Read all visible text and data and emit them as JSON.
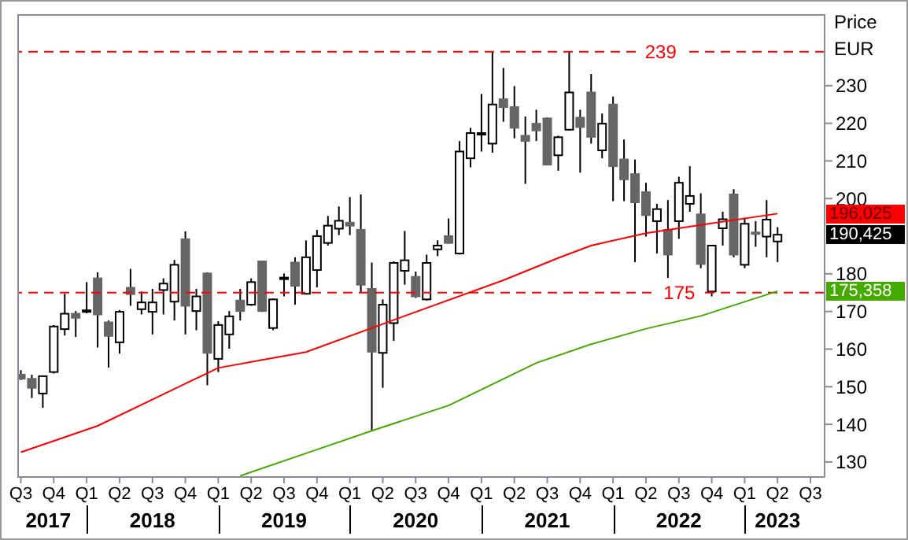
{
  "chart_data": {
    "type": "candlestick",
    "ylabel": "Price\nEUR",
    "x": [
      "2017-07",
      "2017-08",
      "2017-09",
      "2017-10",
      "2017-11",
      "2017-12",
      "2018-01",
      "2018-02",
      "2018-03",
      "2018-04",
      "2018-05",
      "2018-06",
      "2018-07",
      "2018-08",
      "2018-09",
      "2018-10",
      "2018-11",
      "2018-12",
      "2019-01",
      "2019-02",
      "2019-03",
      "2019-04",
      "2019-05",
      "2019-06",
      "2019-07",
      "2019-08",
      "2019-09",
      "2019-10",
      "2019-11",
      "2019-12",
      "2020-01",
      "2020-02",
      "2020-03",
      "2020-04",
      "2020-05",
      "2020-06",
      "2020-07",
      "2020-08",
      "2020-09",
      "2020-10",
      "2020-11",
      "2020-12",
      "2021-01",
      "2021-02",
      "2021-03",
      "2021-04",
      "2021-05",
      "2021-06",
      "2021-07",
      "2021-08",
      "2021-09",
      "2021-10",
      "2021-11",
      "2021-12",
      "2022-01",
      "2022-02",
      "2022-03",
      "2022-04",
      "2022-05",
      "2022-06",
      "2022-07",
      "2022-08",
      "2022-09",
      "2022-10",
      "2022-11",
      "2022-12",
      "2023-01",
      "2023-02",
      "2023-03",
      "2023-04"
    ],
    "ohlc": [
      [
        153.2,
        154.4,
        151.8,
        152.1
      ],
      [
        152.1,
        153.2,
        147.0,
        149.7
      ],
      [
        148.2,
        153.0,
        144.4,
        152.8
      ],
      [
        153.9,
        166.4,
        153.5,
        166.0
      ],
      [
        165.3,
        174.7,
        163.6,
        169.4
      ],
      [
        169.4,
        170.1,
        163.2,
        168.3
      ],
      [
        169.9,
        177.8,
        169.5,
        170.3
      ],
      [
        178.8,
        180.4,
        160.4,
        169.2
      ],
      [
        167.1,
        167.6,
        155.1,
        163.5
      ],
      [
        161.8,
        170.4,
        158.8,
        169.9
      ],
      [
        176.3,
        181.3,
        171.5,
        174.6
      ],
      [
        170.6,
        175.3,
        169.2,
        172.4
      ],
      [
        169.9,
        176.0,
        163.9,
        172.4
      ],
      [
        175.7,
        178.8,
        169.2,
        177.4
      ],
      [
        172.6,
        183.7,
        167.6,
        182.4
      ],
      [
        189.2,
        191.3,
        163.9,
        171.5
      ],
      [
        170.1,
        176.0,
        165.0,
        174.0
      ],
      [
        180.1,
        180.4,
        150.4,
        159.0
      ],
      [
        157.4,
        167.4,
        153.9,
        166.4
      ],
      [
        163.9,
        170.1,
        160.1,
        168.7
      ],
      [
        172.9,
        176.0,
        167.6,
        170.1
      ],
      [
        171.8,
        178.8,
        171.5,
        177.8
      ],
      [
        183.3,
        183.5,
        169.9,
        170.1
      ],
      [
        165.6,
        173.4,
        165.0,
        173.2
      ],
      [
        178.7,
        180.1,
        174.0,
        179.0
      ],
      [
        183.0,
        184.4,
        171.8,
        176.8
      ],
      [
        174.7,
        188.9,
        174.5,
        184.4
      ],
      [
        181.0,
        191.7,
        176.4,
        190.0
      ],
      [
        188.2,
        195.4,
        187.5,
        192.8
      ],
      [
        192.0,
        197.9,
        190.3,
        194.1
      ],
      [
        193.6,
        200.4,
        190.3,
        192.8
      ],
      [
        191.7,
        201.1,
        175.0,
        177.1
      ],
      [
        176.0,
        183.0,
        138.2,
        159.3
      ],
      [
        159.0,
        173.2,
        149.7,
        171.8
      ],
      [
        166.9,
        183.3,
        162.2,
        182.9
      ],
      [
        180.8,
        191.4,
        177.1,
        183.6
      ],
      [
        179.2,
        180.6,
        173.6,
        174.0
      ],
      [
        173.2,
        185.1,
        172.9,
        182.9
      ],
      [
        186.5,
        188.9,
        184.7,
        187.5
      ],
      [
        190.0,
        194.7,
        188.0,
        188.2
      ],
      [
        185.4,
        215.3,
        185.1,
        212.5
      ],
      [
        210.7,
        218.8,
        208.3,
        217.4
      ],
      [
        217.1,
        227.8,
        212.5,
        217.4
      ],
      [
        214.6,
        239,
        212.2,
        225.0
      ],
      [
        226.4,
        234.7,
        220.4,
        224.3
      ],
      [
        224.3,
        229.9,
        216.0,
        218.8
      ],
      [
        216.7,
        221.8,
        203.9,
        215.3
      ],
      [
        219.9,
        223.6,
        215.3,
        218.1
      ],
      [
        221.3,
        221.5,
        209.0,
        209.0
      ],
      [
        211.5,
        216.7,
        207.4,
        216.3
      ],
      [
        218.3,
        239,
        218.1,
        228.2
      ],
      [
        221.5,
        223.6,
        206.9,
        219.0
      ],
      [
        228.2,
        233.1,
        214.6,
        216.4
      ],
      [
        212.8,
        222.6,
        210.7,
        219.9
      ],
      [
        225.0,
        227.1,
        199.3,
        208.6
      ],
      [
        210.4,
        215.7,
        199.3,
        205.1
      ],
      [
        206.5,
        210.4,
        183.1,
        199.0
      ],
      [
        201.7,
        204.2,
        189.9,
        195.6
      ],
      [
        194.0,
        198.6,
        185.4,
        197.2
      ],
      [
        191.7,
        199.6,
        178.9,
        185.1
      ],
      [
        194.0,
        205.8,
        189.3,
        204.2
      ],
      [
        198.6,
        208.6,
        196.5,
        200.7
      ],
      [
        195.8,
        201.4,
        181.5,
        182.6
      ],
      [
        175.3,
        187.5,
        174.0,
        187.5
      ],
      [
        192.1,
        196.5,
        187.5,
        194.5
      ],
      [
        201.1,
        202.5,
        184.4,
        185.1
      ],
      [
        182.4,
        194.9,
        181.5,
        193.3
      ],
      [
        191.0,
        194.0,
        187.2,
        190.6
      ],
      [
        189.9,
        199.6,
        184.4,
        194.4
      ],
      [
        188.6,
        192.4,
        183.1,
        190.4
      ]
    ],
    "series": [
      {
        "type": "line",
        "color": "#ff0000",
        "x": [
          "2017-07",
          "2018-02",
          "2018-10",
          "2019-01",
          "2019-05",
          "2019-09",
          "2020-06",
          "2021-03",
          "2021-08",
          "2021-11",
          "2022-04",
          "2022-09",
          "2023-04"
        ],
        "values": [
          132.6,
          139.6,
          150.8,
          155.0,
          157.1,
          159.2,
          168.8,
          178.3,
          184.2,
          187.5,
          190.8,
          193.0,
          196.0
        ]
      },
      {
        "type": "line",
        "color": "#44aa00",
        "x": [
          "2019-03",
          "2019-10",
          "2020-03",
          "2020-10",
          "2021-06",
          "2021-11",
          "2022-04",
          "2022-09",
          "2023-04"
        ],
        "values": [
          126.3,
          133.3,
          138.3,
          145.0,
          156.3,
          161.3,
          165.4,
          168.8,
          175.4
        ]
      }
    ],
    "xlim": [
      "2017-06-22",
      "2023-08-10"
    ],
    "xticks": [
      {
        "value": "2017-07",
        "label": "Q3"
      },
      {
        "value": "2017-10",
        "label": "Q4"
      },
      {
        "value": "2018-01",
        "label": "Q1"
      },
      {
        "value": "2018-04",
        "label": "Q2"
      },
      {
        "value": "2018-07",
        "label": "Q3"
      },
      {
        "value": "2018-10",
        "label": "Q4"
      },
      {
        "value": "2019-01",
        "label": "Q1"
      },
      {
        "value": "2019-04",
        "label": "Q2"
      },
      {
        "value": "2019-07",
        "label": "Q3"
      },
      {
        "value": "2019-10",
        "label": "Q4"
      },
      {
        "value": "2020-01",
        "label": "Q1"
      },
      {
        "value": "2020-04",
        "label": "Q2"
      },
      {
        "value": "2020-07",
        "label": "Q3"
      },
      {
        "value": "2020-10",
        "label": "Q4"
      },
      {
        "value": "2021-01",
        "label": "Q1"
      },
      {
        "value": "2021-04",
        "label": "Q2"
      },
      {
        "value": "2021-07",
        "label": "Q3"
      },
      {
        "value": "2021-10",
        "label": "Q4"
      },
      {
        "value": "2022-01",
        "label": "Q1"
      },
      {
        "value": "2022-04",
        "label": "Q2"
      },
      {
        "value": "2022-07",
        "label": "Q3"
      },
      {
        "value": "2022-10",
        "label": "Q4"
      },
      {
        "value": "2023-01",
        "label": "Q1"
      },
      {
        "value": "2023-04",
        "label": "Q2"
      },
      {
        "value": "2023-07",
        "label": "Q3"
      }
    ],
    "ylim": [
      126,
      249
    ],
    "yticks": [
      130,
      140,
      150,
      160,
      170,
      180,
      200,
      210,
      220,
      230
    ],
    "ref_lines": [
      {
        "axis": "y",
        "value": 239,
        "label": "239",
        "color": "#ff0000",
        "line_style": "dashed"
      },
      {
        "axis": "y",
        "value": 175,
        "label": "175",
        "color": "#ff0000",
        "line_style": "dashed"
      }
    ],
    "annotations": [
      "2017",
      "2018",
      "2019",
      "2020",
      "2021",
      "2022",
      "2023",
      "196,025",
      "190,425",
      "175,358"
    ]
  }
}
